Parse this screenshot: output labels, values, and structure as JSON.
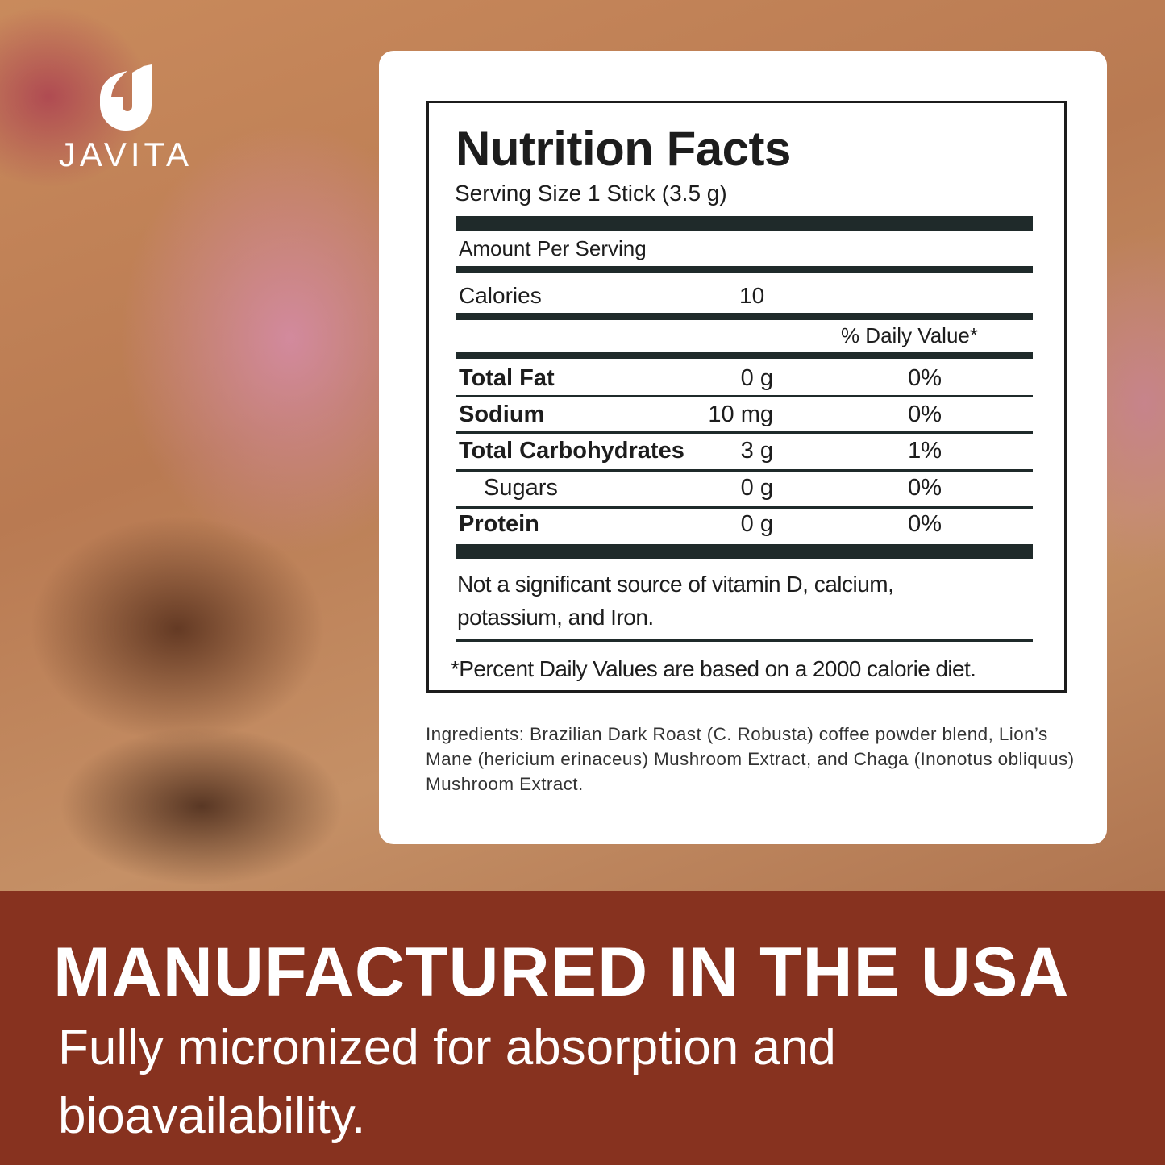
{
  "brand": {
    "name": "JAVITA",
    "logo_letter": "J"
  },
  "nutrition": {
    "title": "Nutrition Facts",
    "serving_size": "Serving Size  1 Stick (3.5 g)",
    "amount_per_serving": "Amount Per Serving",
    "calories_label": "Calories",
    "calories_value": "10",
    "daily_value_header": "% Daily Value*",
    "rows": [
      {
        "name": "Total Fat",
        "amount": "0 g",
        "dv": "0%"
      },
      {
        "name": "Sodium",
        "amount": "10 mg",
        "dv": "0%"
      },
      {
        "name": "Total Carbohydrates",
        "amount": "3 g",
        "dv": "1%"
      },
      {
        "name": "Sugars",
        "amount": "0 g",
        "dv": "0%"
      },
      {
        "name": "Protein",
        "amount": "0 g",
        "dv": "0%"
      }
    ],
    "note_line1": "Not a significant source of vitamin D, calcium,",
    "note_line2": "potassium, and Iron.",
    "footnote": "*Percent Daily Values are based on a 2000 calorie diet."
  },
  "ingredients": "Ingredients: Brazilian Dark Roast (C. Robusta) coffee powder blend, Lion’s Mane (hericium erinaceus) Mushroom Extract, and Chaga (Inonotus obliquus) Mushroom Extract.",
  "banner": {
    "headline": "MANUFACTURED IN THE USA",
    "subtext": "Fully micronized for absorption and bioavailability.",
    "color": "#87321f"
  }
}
